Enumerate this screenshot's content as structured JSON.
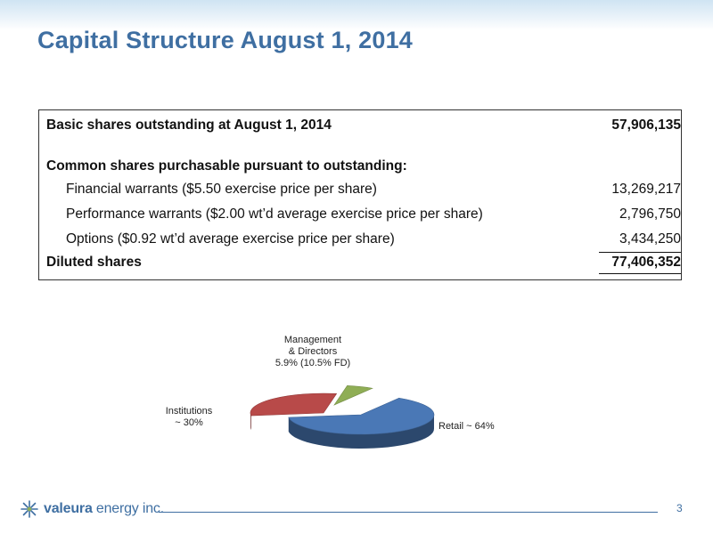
{
  "slide": {
    "title": "Capital Structure August 1, 2014",
    "page_number": "3",
    "logo": {
      "brand_bold": "valeura",
      "brand_rest": " energy inc."
    }
  },
  "table": {
    "basic": {
      "label": "Basic shares outstanding at August 1, 2014",
      "value": "57,906,135"
    },
    "section_header": "Common shares purchasable pursuant to outstanding:",
    "items": [
      {
        "label": "Financial warrants ($5.50 exercise price per share)",
        "value": "13,269,217"
      },
      {
        "label": "Performance warrants ($2.00 wt’d average exercise price per share)",
        "value": "2,796,750"
      },
      {
        "label": "Options ($0.92 wt’d average exercise price per share)",
        "value": "3,434,250"
      }
    ],
    "diluted": {
      "label": "Diluted shares",
      "value": "77,406,352"
    }
  },
  "chart_data": {
    "type": "pie",
    "categories": [
      "Retail",
      "Institutions",
      "Management & Directors"
    ],
    "values": [
      64,
      30,
      5.9
    ],
    "labels": [
      {
        "line1": "Retail ~ 64%"
      },
      {
        "line1": "Institutions",
        "line2": "~ 30%"
      },
      {
        "line1": "Management",
        "line2": "& Directors",
        "line3": "5.9% (10.5% FD)"
      }
    ],
    "colors": [
      "#4a78b6",
      "#b84a49",
      "#8fae55"
    ],
    "style": "3d-exploded"
  }
}
